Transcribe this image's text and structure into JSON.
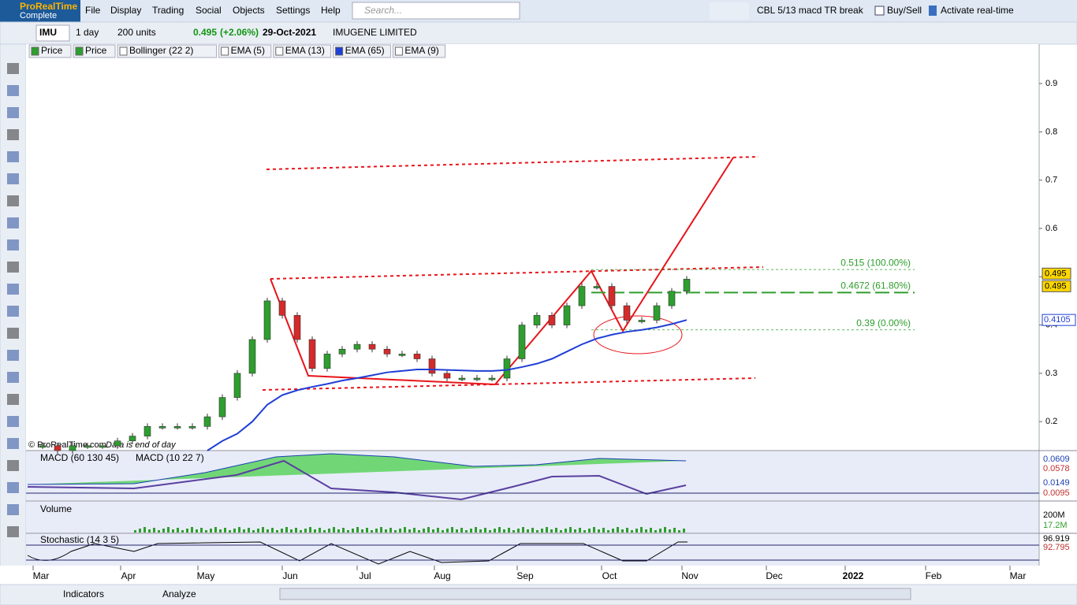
{
  "app": {
    "logo": "ProRealTime",
    "edition": "Complete",
    "menu": [
      "File",
      "Display",
      "Trading",
      "Social",
      "Objects",
      "Settings",
      "Help"
    ],
    "search_placeholder": "Search...",
    "layout_name": "CBL 5/13 macd TR break",
    "buy_sell": "Buy/Sell",
    "activate": "Activate real-time"
  },
  "toolbar": {
    "symbol": "IMU",
    "period": "1 day",
    "units": "200 units",
    "price": "0.495",
    "change": "(+2.06%)",
    "date": "29-Oct-2021",
    "name": "IMUGENE LIMITED"
  },
  "indicators": [
    "Price",
    "Price",
    "Bollinger (22 2)",
    "EMA (5)",
    "EMA (13)",
    "EMA (65)",
    "EMA (9)"
  ],
  "chart": {
    "type": "candlestick",
    "ylim": [
      0.14,
      0.98
    ],
    "yticks": [
      0.2,
      0.3,
      0.4,
      0.5,
      0.6,
      0.7,
      0.8,
      0.9
    ],
    "x_labels": [
      "Mar",
      "Apr",
      "May",
      "Jun",
      "Jul",
      "Aug",
      "Sep",
      "Oct",
      "Nov",
      "Dec",
      "2022",
      "Feb",
      "Mar"
    ],
    "series": [
      {
        "color": "#2e9e2e",
        "values": [
          0.15,
          0.15,
          0.14,
          0.15,
          0.15,
          0.15,
          0.16,
          0.17,
          0.19,
          0.19,
          0.19,
          0.19,
          0.21,
          0.25,
          0.3,
          0.37,
          0.45,
          0.42,
          0.37,
          0.31,
          0.34,
          0.35,
          0.36,
          0.35,
          0.34,
          0.34,
          0.33,
          0.3,
          0.29,
          0.29,
          0.29,
          0.29,
          0.33,
          0.4,
          0.42,
          0.4,
          0.44,
          0.48,
          0.48,
          0.44,
          0.41,
          0.41,
          0.44,
          0.47,
          0.495
        ]
      },
      {
        "color": "#1f3fd6",
        "values": [
          null,
          null,
          null,
          null,
          null,
          null,
          null,
          null,
          null,
          null,
          null,
          null,
          0.14,
          0.16,
          0.175,
          0.2,
          0.235,
          0.255,
          0.265,
          0.272,
          0.278,
          0.285,
          0.29,
          0.296,
          0.302,
          0.305,
          0.308,
          0.308,
          0.307,
          0.306,
          0.305,
          0.305,
          0.307,
          0.313,
          0.32,
          0.33,
          0.345,
          0.36,
          0.372,
          0.38,
          0.386,
          0.39,
          0.395,
          0.402,
          0.4105
        ]
      }
    ],
    "fib": [
      {
        "value": 0.515,
        "label": "0.515 (100.00%)"
      },
      {
        "value": 0.4672,
        "label": "0.4672 (61.80%)"
      },
      {
        "value": 0.39,
        "label": "0.39 (0.00%)"
      }
    ],
    "copyright": "© ProRealTime.com",
    "note": "Data is end of day"
  },
  "macd": {
    "labels": [
      "MACD (60 130 45)",
      "MACD (10 22 7)"
    ],
    "values": [
      "0.0609",
      "0.0578",
      "0.0149",
      "0.0095"
    ]
  },
  "volume": {
    "label": "Volume",
    "tick": "200M",
    "value": "17.2M"
  },
  "stochastic": {
    "label": "Stochastic (14 3 5)",
    "values": [
      "96.919",
      "92.795"
    ]
  },
  "footer": {
    "indicators": "Indicators",
    "analyze": "Analyze"
  }
}
